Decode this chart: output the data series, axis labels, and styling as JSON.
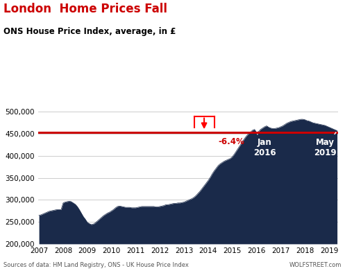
{
  "title": "London  Home Prices Fall",
  "subtitle": "ONS House Price Index, average, in £",
  "footer": "Sources of data: HM Land Registry, ONS - UK House Price Index",
  "footer_right": "WOLFSTREET.com",
  "title_color": "#cc0000",
  "subtitle_color": "#000000",
  "fill_color": "#1a2a4a",
  "ref_line_color": "#cc0000",
  "ref_line_value": 453000,
  "annotation_pct": "-6.4%",
  "annotation_pct_color": "#cc0000",
  "background_color": "#ffffff",
  "ylim": [
    200000,
    520000
  ],
  "yticks": [
    200000,
    250000,
    300000,
    350000,
    400000,
    450000,
    500000
  ],
  "grid_color": "#cccccc",
  "data": {
    "2007-01": 265000,
    "2007-02": 266000,
    "2007-03": 268000,
    "2007-04": 270000,
    "2007-05": 272000,
    "2007-06": 274000,
    "2007-07": 275000,
    "2007-08": 276000,
    "2007-09": 277000,
    "2007-10": 278000,
    "2007-11": 278000,
    "2007-12": 278000,
    "2008-01": 293000,
    "2008-02": 295000,
    "2008-03": 296000,
    "2008-04": 297000,
    "2008-05": 296000,
    "2008-06": 293000,
    "2008-07": 290000,
    "2008-08": 285000,
    "2008-09": 278000,
    "2008-10": 270000,
    "2008-11": 262000,
    "2008-12": 256000,
    "2009-01": 249000,
    "2009-02": 246000,
    "2009-03": 244000,
    "2009-04": 245000,
    "2009-05": 248000,
    "2009-06": 252000,
    "2009-07": 256000,
    "2009-08": 260000,
    "2009-09": 264000,
    "2009-10": 267000,
    "2009-11": 270000,
    "2009-12": 272000,
    "2010-01": 275000,
    "2010-02": 278000,
    "2010-03": 282000,
    "2010-04": 285000,
    "2010-05": 286000,
    "2010-06": 285000,
    "2010-07": 284000,
    "2010-08": 283000,
    "2010-09": 283000,
    "2010-10": 283000,
    "2010-11": 282000,
    "2010-12": 282000,
    "2011-01": 282000,
    "2011-02": 283000,
    "2011-03": 284000,
    "2011-04": 285000,
    "2011-05": 285000,
    "2011-06": 285000,
    "2011-07": 285000,
    "2011-08": 285000,
    "2011-09": 285000,
    "2011-10": 285000,
    "2011-11": 284000,
    "2011-12": 284000,
    "2012-01": 285000,
    "2012-02": 286000,
    "2012-03": 287000,
    "2012-04": 289000,
    "2012-05": 289000,
    "2012-06": 290000,
    "2012-07": 291000,
    "2012-08": 292000,
    "2012-09": 292000,
    "2012-10": 293000,
    "2012-11": 293000,
    "2012-12": 294000,
    "2013-01": 295000,
    "2013-02": 297000,
    "2013-03": 299000,
    "2013-04": 301000,
    "2013-05": 303000,
    "2013-06": 306000,
    "2013-07": 310000,
    "2013-08": 315000,
    "2013-09": 320000,
    "2013-10": 326000,
    "2013-11": 332000,
    "2013-12": 338000,
    "2014-01": 344000,
    "2014-02": 351000,
    "2014-03": 359000,
    "2014-04": 366000,
    "2014-05": 372000,
    "2014-06": 378000,
    "2014-07": 382000,
    "2014-08": 385000,
    "2014-09": 388000,
    "2014-10": 390000,
    "2014-11": 392000,
    "2014-12": 394000,
    "2015-01": 398000,
    "2015-02": 404000,
    "2015-03": 411000,
    "2015-04": 418000,
    "2015-05": 425000,
    "2015-06": 432000,
    "2015-07": 439000,
    "2015-08": 445000,
    "2015-09": 450000,
    "2015-10": 454000,
    "2015-11": 458000,
    "2015-12": 460000,
    "2016-01": 453000,
    "2016-02": 455000,
    "2016-03": 460000,
    "2016-04": 463000,
    "2016-05": 466000,
    "2016-06": 468000,
    "2016-07": 465000,
    "2016-08": 463000,
    "2016-09": 462000,
    "2016-10": 462000,
    "2016-11": 463000,
    "2016-12": 464000,
    "2017-01": 466000,
    "2017-02": 468000,
    "2017-03": 471000,
    "2017-04": 474000,
    "2017-05": 476000,
    "2017-06": 478000,
    "2017-07": 479000,
    "2017-08": 480000,
    "2017-09": 481000,
    "2017-10": 482000,
    "2017-11": 483000,
    "2017-12": 483000,
    "2018-01": 482000,
    "2018-02": 480000,
    "2018-03": 479000,
    "2018-04": 477000,
    "2018-05": 475000,
    "2018-06": 474000,
    "2018-07": 473000,
    "2018-08": 472000,
    "2018-09": 471000,
    "2018-10": 470000,
    "2018-11": 469000,
    "2018-12": 467000,
    "2019-01": 465000,
    "2019-02": 463000,
    "2019-03": 461000,
    "2019-04": 459000,
    "2019-05": 457000
  }
}
